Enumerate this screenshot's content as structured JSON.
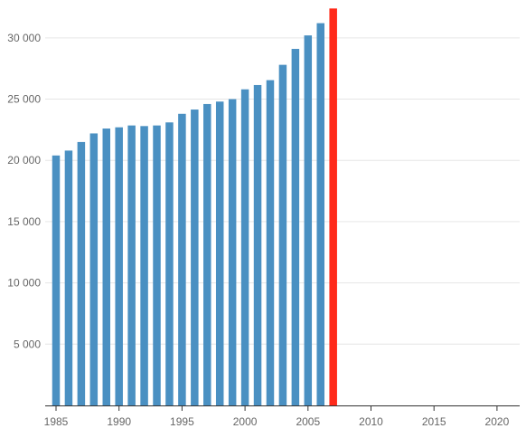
{
  "chart_data": {
    "type": "bar",
    "title": "",
    "xlabel": "",
    "ylabel": "",
    "x": [
      1985,
      1986,
      1987,
      1988,
      1989,
      1990,
      1991,
      1992,
      1993,
      1994,
      1995,
      1996,
      1997,
      1998,
      1999,
      2000,
      2001,
      2002,
      2003,
      2004,
      2005,
      2006,
      2007
    ],
    "values": [
      20400,
      20800,
      21500,
      22200,
      22600,
      22700,
      22850,
      22800,
      22850,
      23100,
      23800,
      24150,
      24600,
      24800,
      25000,
      25800,
      26150,
      26550,
      27800,
      29100,
      30200,
      31200,
      32400
    ],
    "highlight_index": 22,
    "colors": {
      "bar": "#4a90c2",
      "highlight": "#ff2a1a"
    },
    "xlim": [
      1985,
      2022
    ],
    "ylim": [
      0,
      32500
    ],
    "x_ticks": [
      1985,
      1990,
      1995,
      2000,
      2005,
      2010,
      2015,
      2020
    ],
    "x_tick_labels": [
      "1985",
      "1990",
      "1995",
      "2000",
      "2005",
      "2010",
      "2015",
      "2020"
    ],
    "y_ticks": [
      5000,
      10000,
      15000,
      20000,
      25000,
      30000
    ],
    "y_tick_labels": [
      "5 000",
      "10 000",
      "15 000",
      "20 000",
      "25 000",
      "30 000"
    ],
    "grid": true,
    "legend": "none"
  }
}
